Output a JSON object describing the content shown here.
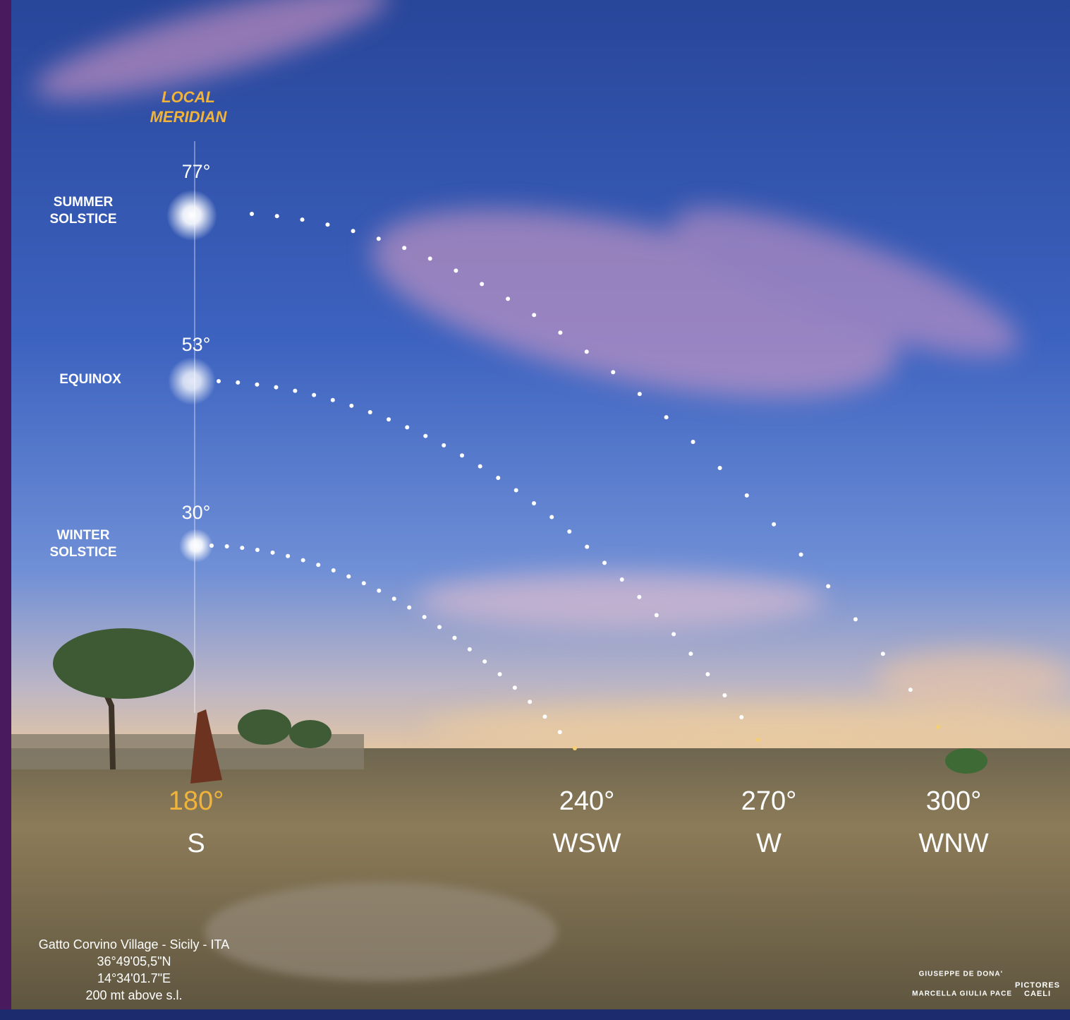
{
  "meridian_label": [
    "LOCAL",
    "MERIDIAN"
  ],
  "sun_paths": [
    {
      "altitude": "77°",
      "name": [
        "SUMMER",
        "SOLSTICE"
      ]
    },
    {
      "altitude": "53°",
      "name": [
        "EQUINOX"
      ]
    },
    {
      "altitude": "30°",
      "name": [
        "WINTER",
        "SOLSTICE"
      ]
    }
  ],
  "azimuths": [
    {
      "degrees": "180°",
      "direction": "S"
    },
    {
      "degrees": "240°",
      "direction": "WSW"
    },
    {
      "degrees": "270°",
      "direction": "W"
    },
    {
      "degrees": "300°",
      "direction": "WNW"
    }
  ],
  "location": [
    "Gatto Corvino Village - Sicily - ITA",
    "36°49'05,5\"N",
    "14°34'01.7\"E",
    "200 mt above s.l."
  ],
  "credits": {
    "photographers": [
      "GIUSEPPE DE DONA'",
      "MARCELLA GIULIA PACE"
    ],
    "logo": [
      "PICTORES",
      "CAELI"
    ]
  }
}
